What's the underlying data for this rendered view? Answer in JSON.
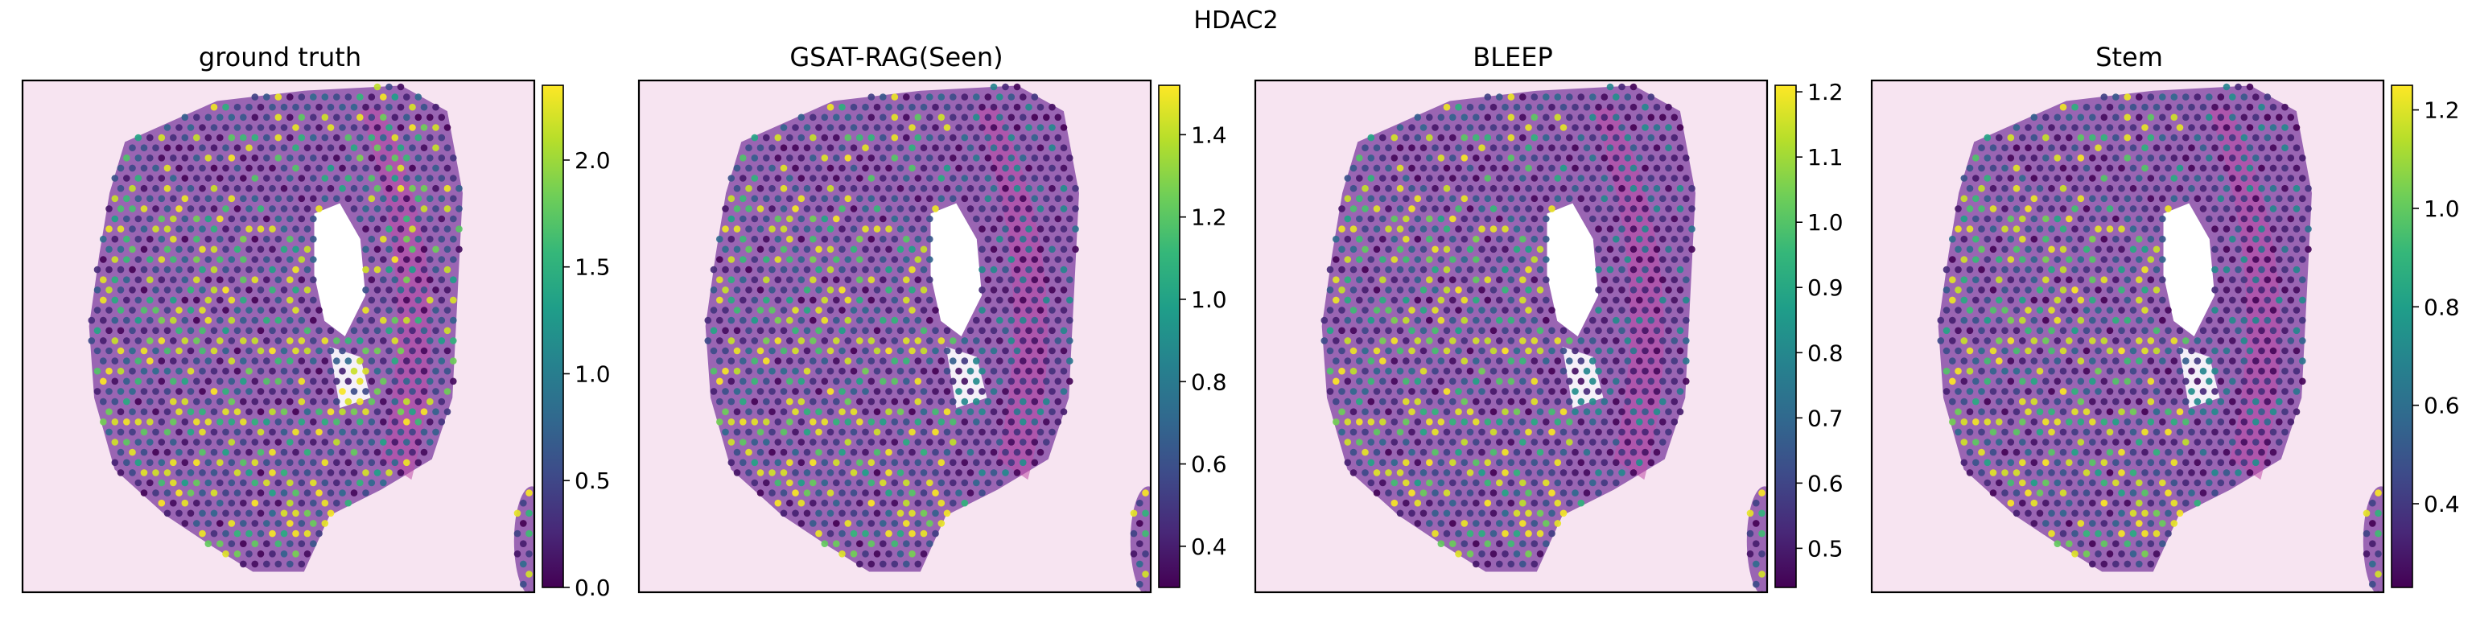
{
  "figure": {
    "title": "HDAC2"
  },
  "colormap": [
    "#440154",
    "#482878",
    "#3e4a89",
    "#31688e",
    "#26828e",
    "#1f9e89",
    "#35b779",
    "#6ece58",
    "#b5de2b",
    "#fde725"
  ],
  "tissue_colors": {
    "background": "#f7e4f1",
    "tissue": "#8a4fa8",
    "stroma": "#c04aa5",
    "lumen": "#ffffff"
  },
  "chart_data": [
    {
      "type": "scatter",
      "title": "ground truth",
      "colorbar": {
        "range": [
          0.0,
          2.35
        ],
        "ticks": [
          0.0,
          0.5,
          1.0,
          1.5,
          2.0
        ],
        "tick_labels": [
          "0.0",
          "0.5",
          "1.0",
          "1.5",
          "2.0"
        ]
      }
    },
    {
      "type": "scatter",
      "title": "GSAT-RAG(Seen)",
      "colorbar": {
        "range": [
          0.3,
          1.52
        ],
        "ticks": [
          0.4,
          0.6,
          0.8,
          1.0,
          1.2,
          1.4
        ],
        "tick_labels": [
          "0.4",
          "0.6",
          "0.8",
          "1.0",
          "1.2",
          "1.4"
        ]
      }
    },
    {
      "type": "scatter",
      "title": "BLEEP",
      "colorbar": {
        "range": [
          0.44,
          1.21
        ],
        "ticks": [
          0.5,
          0.6,
          0.7,
          0.8,
          0.9,
          1.0,
          1.1,
          1.2
        ],
        "tick_labels": [
          "0.5",
          "0.6",
          "0.7",
          "0.8",
          "0.9",
          "1.0",
          "1.1",
          "1.2"
        ]
      }
    },
    {
      "type": "scatter",
      "title": "Stem",
      "colorbar": {
        "range": [
          0.23,
          1.25
        ],
        "ticks": [
          0.4,
          0.6,
          0.8,
          1.0,
          1.2
        ],
        "tick_labels": [
          "0.4",
          "0.6",
          "0.8",
          "1.0",
          "1.2"
        ]
      }
    }
  ]
}
